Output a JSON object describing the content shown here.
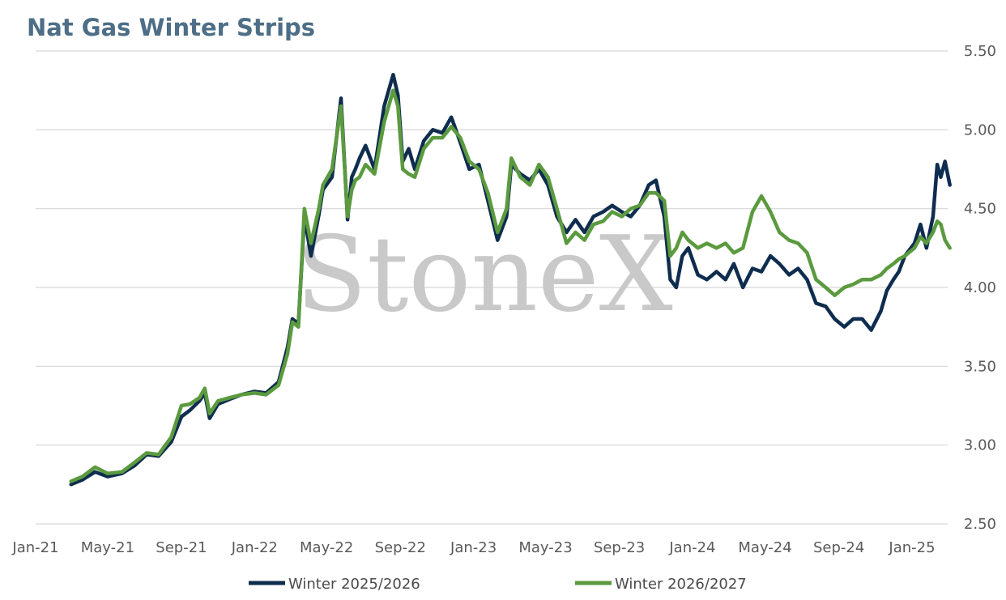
{
  "chart_data": {
    "type": "line",
    "title": "Nat Gas Winter Strips",
    "watermark": "StoneX",
    "xlabel": "",
    "ylabel": "",
    "ylim": [
      2.5,
      5.5
    ],
    "y_ticks": [
      "2.50",
      "3.00",
      "3.50",
      "4.00",
      "4.50",
      "5.00",
      "5.50"
    ],
    "x_ticks": [
      "Jan-21",
      "May-21",
      "Sep-21",
      "Jan-22",
      "May-22",
      "Sep-22",
      "Jan-23",
      "May-23",
      "Sep-23",
      "Jan-24",
      "May-24",
      "Sep-24",
      "Jan-25"
    ],
    "grid": true,
    "legend_position": "bottom",
    "series": [
      {
        "name": "Winter 2025/2026",
        "color": "#0f2d4e",
        "x": [
          "2021-03-01",
          "2021-03-20",
          "2021-04-10",
          "2021-05-01",
          "2021-05-25",
          "2021-06-15",
          "2021-07-05",
          "2021-07-25",
          "2021-08-15",
          "2021-09-01",
          "2021-09-15",
          "2021-10-01",
          "2021-10-10",
          "2021-10-18",
          "2021-11-01",
          "2021-11-20",
          "2021-12-10",
          "2022-01-01",
          "2022-01-20",
          "2022-02-10",
          "2022-02-25",
          "2022-03-05",
          "2022-03-15",
          "2022-03-25",
          "2022-04-05",
          "2022-04-18",
          "2022-04-25",
          "2022-05-10",
          "2022-05-25",
          "2022-06-05",
          "2022-06-12",
          "2022-06-18",
          "2022-06-25",
          "2022-07-05",
          "2022-07-20",
          "2022-08-05",
          "2022-08-20",
          "2022-08-28",
          "2022-09-05",
          "2022-09-15",
          "2022-09-25",
          "2022-10-10",
          "2022-10-25",
          "2022-11-10",
          "2022-11-25",
          "2022-12-10",
          "2022-12-25",
          "2023-01-10",
          "2023-01-25",
          "2023-02-10",
          "2023-02-25",
          "2023-03-05",
          "2023-03-20",
          "2023-04-05",
          "2023-04-20",
          "2023-05-05",
          "2023-05-20",
          "2023-06-05",
          "2023-06-20",
          "2023-07-05",
          "2023-07-20",
          "2023-08-05",
          "2023-08-20",
          "2023-09-05",
          "2023-09-20",
          "2023-10-05",
          "2023-10-20",
          "2023-11-01",
          "2023-11-15",
          "2023-11-25",
          "2023-12-05",
          "2023-12-15",
          "2023-12-25",
          "2024-01-10",
          "2024-01-25",
          "2024-02-10",
          "2024-02-25",
          "2024-03-10",
          "2024-03-25",
          "2024-04-10",
          "2024-04-25",
          "2024-05-10",
          "2024-05-25",
          "2024-06-10",
          "2024-06-25",
          "2024-07-10",
          "2024-07-25",
          "2024-08-10",
          "2024-08-25",
          "2024-09-10",
          "2024-09-25",
          "2024-10-10",
          "2024-10-25",
          "2024-11-10",
          "2024-11-20",
          "2024-12-01",
          "2024-12-10",
          "2024-12-20",
          "2025-01-05",
          "2025-01-15",
          "2025-01-25",
          "2025-02-05",
          "2025-02-12",
          "2025-02-18",
          "2025-02-25",
          "2025-03-05"
        ],
        "values": [
          2.75,
          2.78,
          2.83,
          2.8,
          2.82,
          2.87,
          2.94,
          2.93,
          3.02,
          3.18,
          3.22,
          3.28,
          3.33,
          3.17,
          3.26,
          3.29,
          3.32,
          3.34,
          3.33,
          3.4,
          3.62,
          3.8,
          3.77,
          4.45,
          4.2,
          4.46,
          4.62,
          4.7,
          5.2,
          4.43,
          4.7,
          4.75,
          4.82,
          4.9,
          4.75,
          5.15,
          5.35,
          5.22,
          4.8,
          4.88,
          4.75,
          4.93,
          5.0,
          4.98,
          5.08,
          4.92,
          4.75,
          4.78,
          4.55,
          4.3,
          4.45,
          4.78,
          4.72,
          4.68,
          4.75,
          4.65,
          4.45,
          4.35,
          4.43,
          4.35,
          4.45,
          4.48,
          4.52,
          4.48,
          4.45,
          4.52,
          4.65,
          4.68,
          4.45,
          4.05,
          4.0,
          4.2,
          4.25,
          4.08,
          4.05,
          4.1,
          4.05,
          4.15,
          4.0,
          4.12,
          4.1,
          4.2,
          4.15,
          4.08,
          4.12,
          4.05,
          3.9,
          3.88,
          3.8,
          3.75,
          3.8,
          3.8,
          3.73,
          3.85,
          3.98,
          4.05,
          4.1,
          4.2,
          4.28,
          4.4,
          4.25,
          4.45,
          4.78,
          4.7,
          4.8,
          4.65
        ]
      },
      {
        "name": "Winter 2026/2027",
        "color": "#5b9a3f",
        "x": [
          "2021-03-01",
          "2021-03-20",
          "2021-04-10",
          "2021-05-01",
          "2021-05-25",
          "2021-06-15",
          "2021-07-05",
          "2021-07-25",
          "2021-08-15",
          "2021-09-01",
          "2021-09-15",
          "2021-10-01",
          "2021-10-10",
          "2021-10-18",
          "2021-11-01",
          "2021-11-20",
          "2021-12-10",
          "2022-01-01",
          "2022-01-20",
          "2022-02-10",
          "2022-02-25",
          "2022-03-05",
          "2022-03-15",
          "2022-03-25",
          "2022-04-05",
          "2022-04-18",
          "2022-04-25",
          "2022-05-10",
          "2022-05-25",
          "2022-06-05",
          "2022-06-12",
          "2022-06-18",
          "2022-06-25",
          "2022-07-05",
          "2022-07-20",
          "2022-08-05",
          "2022-08-20",
          "2022-08-28",
          "2022-09-05",
          "2022-09-15",
          "2022-09-25",
          "2022-10-10",
          "2022-10-25",
          "2022-11-10",
          "2022-11-25",
          "2022-12-10",
          "2022-12-25",
          "2023-01-10",
          "2023-01-25",
          "2023-02-10",
          "2023-02-25",
          "2023-03-05",
          "2023-03-20",
          "2023-04-05",
          "2023-04-20",
          "2023-05-05",
          "2023-05-20",
          "2023-06-05",
          "2023-06-20",
          "2023-07-05",
          "2023-07-20",
          "2023-08-05",
          "2023-08-20",
          "2023-09-05",
          "2023-09-20",
          "2023-10-05",
          "2023-10-20",
          "2023-11-01",
          "2023-11-15",
          "2023-11-25",
          "2023-12-05",
          "2023-12-15",
          "2023-12-25",
          "2024-01-10",
          "2024-01-25",
          "2024-02-10",
          "2024-02-25",
          "2024-03-10",
          "2024-03-25",
          "2024-04-10",
          "2024-04-25",
          "2024-05-10",
          "2024-05-25",
          "2024-06-10",
          "2024-06-25",
          "2024-07-10",
          "2024-07-25",
          "2024-08-10",
          "2024-08-25",
          "2024-09-10",
          "2024-09-25",
          "2024-10-10",
          "2024-10-25",
          "2024-11-10",
          "2024-11-20",
          "2024-12-01",
          "2024-12-10",
          "2024-12-20",
          "2025-01-05",
          "2025-01-15",
          "2025-01-25",
          "2025-02-05",
          "2025-02-12",
          "2025-02-18",
          "2025-02-25",
          "2025-03-05"
        ],
        "values": [
          2.77,
          2.8,
          2.86,
          2.82,
          2.83,
          2.89,
          2.95,
          2.94,
          3.05,
          3.25,
          3.26,
          3.3,
          3.36,
          3.2,
          3.28,
          3.3,
          3.32,
          3.33,
          3.32,
          3.38,
          3.58,
          3.78,
          3.75,
          4.5,
          4.28,
          4.5,
          4.65,
          4.75,
          5.15,
          4.45,
          4.62,
          4.68,
          4.7,
          4.78,
          4.72,
          5.05,
          5.25,
          5.15,
          4.75,
          4.72,
          4.7,
          4.88,
          4.95,
          4.95,
          5.02,
          4.95,
          4.8,
          4.75,
          4.6,
          4.35,
          4.5,
          4.82,
          4.7,
          4.65,
          4.78,
          4.7,
          4.5,
          4.28,
          4.35,
          4.3,
          4.4,
          4.42,
          4.48,
          4.45,
          4.5,
          4.52,
          4.6,
          4.6,
          4.55,
          4.2,
          4.25,
          4.35,
          4.3,
          4.25,
          4.28,
          4.25,
          4.28,
          4.22,
          4.25,
          4.48,
          4.58,
          4.48,
          4.35,
          4.3,
          4.28,
          4.22,
          4.05,
          4.0,
          3.95,
          4.0,
          4.02,
          4.05,
          4.05,
          4.08,
          4.12,
          4.15,
          4.18,
          4.2,
          4.25,
          4.32,
          4.28,
          4.35,
          4.42,
          4.4,
          4.3,
          4.25
        ]
      }
    ]
  }
}
